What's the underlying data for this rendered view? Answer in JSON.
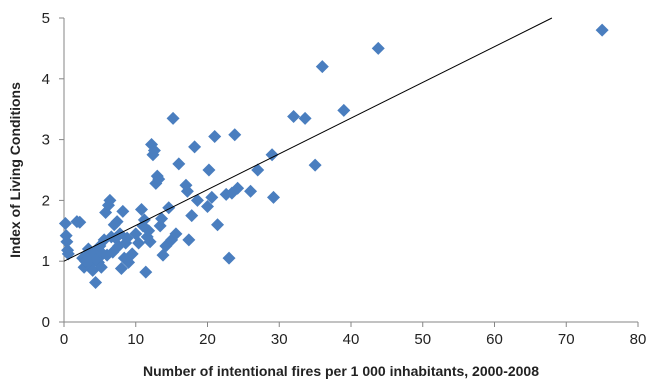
{
  "chart_data": {
    "type": "scatter",
    "title": "",
    "xlabel": "Number of intentional fires per 1 000 inhabitants,  2000-2008",
    "ylabel": "Index of Living Conditions",
    "xlim": [
      0,
      80
    ],
    "ylim": [
      0,
      5
    ],
    "x_ticks": [
      "0",
      "10",
      "20",
      "30",
      "40",
      "50",
      "60",
      "70",
      "80"
    ],
    "y_ticks": [
      "0",
      "1",
      "2",
      "3",
      "4",
      "5"
    ],
    "grid": false,
    "legend": "none",
    "marker": "diamond",
    "marker_color": "#4a7ebf",
    "trendline": {
      "x": [
        0,
        68
      ],
      "y": [
        1.0,
        5.0
      ],
      "color": "#000000"
    },
    "points": [
      [
        0.2,
        1.62
      ],
      [
        0.3,
        1.42
      ],
      [
        0.4,
        1.32
      ],
      [
        0.5,
        1.18
      ],
      [
        0.6,
        1.12
      ],
      [
        1.8,
        1.65
      ],
      [
        2.2,
        1.64
      ],
      [
        2.6,
        1.05
      ],
      [
        2.8,
        0.9
      ],
      [
        3.0,
        1.0
      ],
      [
        3.2,
        1.1
      ],
      [
        3.4,
        1.2
      ],
      [
        3.6,
        1.05
      ],
      [
        3.8,
        0.95
      ],
      [
        4.0,
        0.85
      ],
      [
        4.2,
        1.15
      ],
      [
        4.4,
        0.65
      ],
      [
        4.6,
        1.05
      ],
      [
        4.8,
        0.98
      ],
      [
        5.0,
        1.25
      ],
      [
        5.2,
        0.9
      ],
      [
        5.4,
        1.12
      ],
      [
        5.6,
        1.35
      ],
      [
        5.8,
        1.8
      ],
      [
        6.0,
        1.1
      ],
      [
        6.2,
        1.92
      ],
      [
        6.4,
        2.0
      ],
      [
        6.6,
        1.4
      ],
      [
        6.8,
        1.15
      ],
      [
        7.0,
        1.6
      ],
      [
        7.2,
        1.38
      ],
      [
        7.4,
        1.65
      ],
      [
        7.6,
        1.25
      ],
      [
        7.8,
        1.45
      ],
      [
        8.0,
        0.88
      ],
      [
        8.2,
        1.82
      ],
      [
        8.4,
        1.05
      ],
      [
        8.6,
        1.3
      ],
      [
        8.8,
        1.38
      ],
      [
        9.0,
        0.98
      ],
      [
        9.5,
        1.12
      ],
      [
        10.0,
        1.45
      ],
      [
        10.4,
        1.3
      ],
      [
        10.8,
        1.85
      ],
      [
        11.0,
        1.58
      ],
      [
        11.2,
        1.68
      ],
      [
        11.4,
        0.82
      ],
      [
        11.6,
        1.4
      ],
      [
        11.8,
        1.5
      ],
      [
        12.0,
        1.32
      ],
      [
        12.2,
        2.92
      ],
      [
        12.4,
        2.75
      ],
      [
        12.6,
        2.82
      ],
      [
        12.8,
        2.28
      ],
      [
        13.0,
        2.4
      ],
      [
        13.2,
        2.35
      ],
      [
        13.4,
        1.58
      ],
      [
        13.6,
        1.7
      ],
      [
        13.8,
        1.1
      ],
      [
        14.2,
        1.25
      ],
      [
        14.6,
        1.88
      ],
      [
        15.0,
        1.35
      ],
      [
        15.2,
        3.35
      ],
      [
        15.6,
        1.45
      ],
      [
        16.0,
        2.6
      ],
      [
        17.0,
        2.25
      ],
      [
        17.2,
        2.15
      ],
      [
        17.4,
        1.35
      ],
      [
        17.8,
        1.75
      ],
      [
        18.2,
        2.88
      ],
      [
        18.6,
        2.0
      ],
      [
        20.0,
        1.9
      ],
      [
        20.2,
        2.5
      ],
      [
        20.6,
        2.05
      ],
      [
        21.0,
        3.05
      ],
      [
        21.4,
        1.6
      ],
      [
        22.6,
        2.1
      ],
      [
        23.0,
        1.05
      ],
      [
        23.4,
        2.12
      ],
      [
        23.8,
        3.08
      ],
      [
        24.2,
        2.2
      ],
      [
        26.0,
        2.15
      ],
      [
        27.0,
        2.5
      ],
      [
        29.0,
        2.75
      ],
      [
        29.2,
        2.05
      ],
      [
        32.0,
        3.38
      ],
      [
        33.6,
        3.35
      ],
      [
        35.0,
        2.58
      ],
      [
        36.0,
        4.2
      ],
      [
        39.0,
        3.48
      ],
      [
        43.8,
        4.5
      ],
      [
        75.0,
        4.8
      ]
    ]
  }
}
